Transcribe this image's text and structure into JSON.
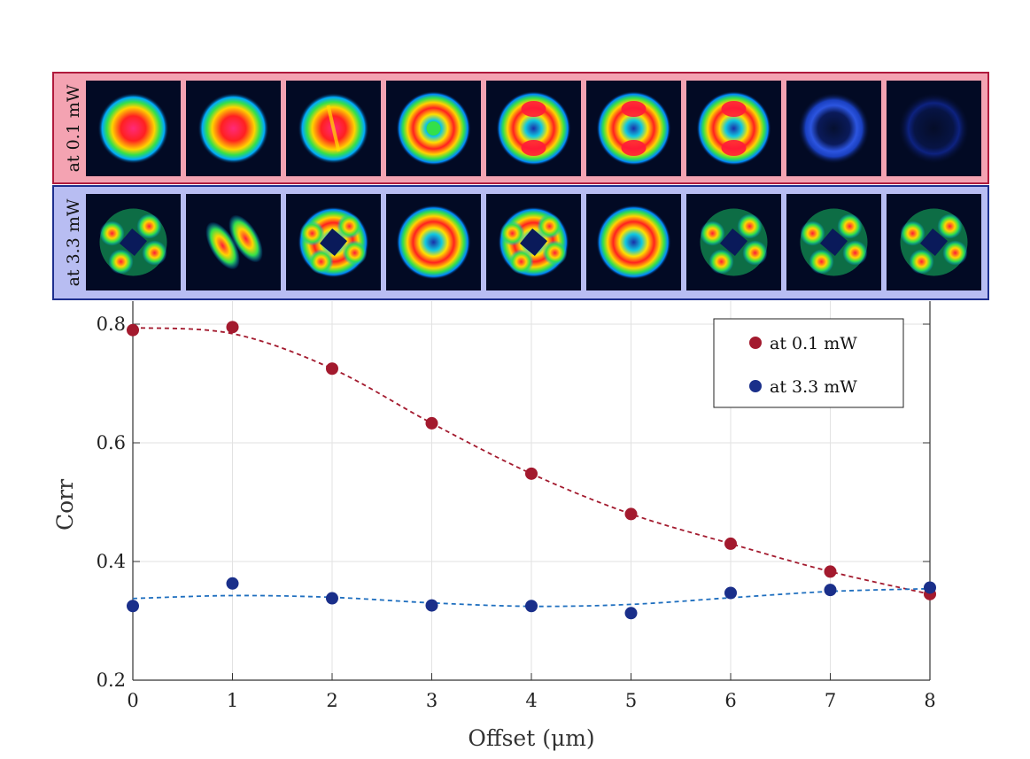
{
  "strips": [
    {
      "label": "at 0.1 mW",
      "color": "#b01a3c",
      "bg": "#f4a3b2"
    },
    {
      "label": "at 3.3 mW",
      "color": "#1e2f8e",
      "bg": "#b8bdf2"
    }
  ],
  "beam_images": {
    "strip_1": [
      "filled-spot",
      "filled-spot",
      "filled-spot-split",
      "ring-filled",
      "ring-two-lobe",
      "ring-two-lobe",
      "ring-two-lobe",
      "faint-ring",
      "very-faint-ring"
    ],
    "strip_2": [
      "four-lobe",
      "two-lobe-tilted",
      "four-lobe-ring",
      "ring",
      "four-lobe-ring",
      "ring",
      "four-lobe",
      "four-lobe",
      "four-lobe"
    ]
  },
  "chart_data": {
    "type": "scatter",
    "x": [
      0,
      1,
      2,
      3,
      4,
      5,
      6,
      7,
      8
    ],
    "series": [
      {
        "name": "at 0.1 mW",
        "color": "#a31a2e",
        "values": [
          0.79,
          0.795,
          0.725,
          0.633,
          0.548,
          0.48,
          0.43,
          0.383,
          0.345
        ]
      },
      {
        "name": "at 3.3 mW",
        "color": "#1a2f8a",
        "values": [
          0.325,
          0.363,
          0.338,
          0.326,
          0.325,
          0.313,
          0.347,
          0.352,
          0.356
        ]
      }
    ],
    "fit_color_1": "#a31a2e",
    "fit_color_2": "#1f6fbf",
    "xlabel": "Offset (μm)",
    "ylabel": "Corr",
    "xlim": [
      0,
      8
    ],
    "ylim": [
      0.2,
      0.8
    ],
    "xticks": [
      "0",
      "1",
      "2",
      "3",
      "4",
      "5",
      "6",
      "7",
      "8"
    ],
    "yticks": [
      "0.2",
      "0.4",
      "0.6",
      "0.8"
    ],
    "grid": true,
    "legend_position": "top-right"
  }
}
